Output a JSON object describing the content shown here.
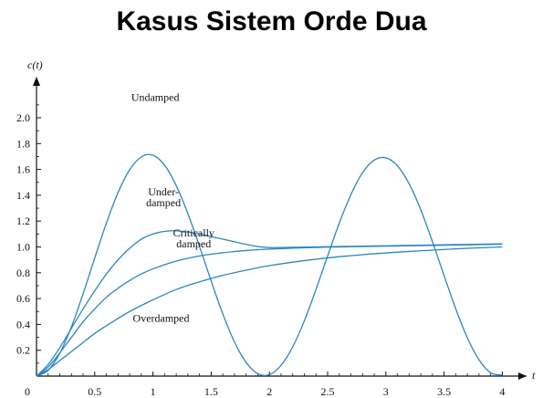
{
  "slide": {
    "title": "Kasus Sistem Orde Dua"
  },
  "chart_data": {
    "type": "line",
    "ylabel": "c(t)",
    "xlabel": "t",
    "xlim": [
      0,
      4.1
    ],
    "ylim": [
      0,
      2.1
    ],
    "x_ticks": [
      "0",
      "0.5",
      "1",
      "1.5",
      "2",
      "2.5",
      "3",
      "3.5",
      "4"
    ],
    "y_ticks": [
      "0.2",
      "0.4",
      "0.6",
      "0.8",
      "1.0",
      "1.2",
      "1.4",
      "1.6",
      "1.8",
      "2.0"
    ],
    "line_color": "#2a86c2",
    "series": [
      {
        "name": "Undamped",
        "x": [
          0,
          0.1,
          0.2,
          0.3,
          0.4,
          0.5,
          0.6,
          0.7,
          0.8,
          0.9,
          1.0,
          1.1,
          1.2,
          1.3,
          1.4,
          1.5,
          1.6,
          1.7,
          1.8,
          1.9,
          2.0,
          2.1,
          2.2,
          2.3,
          2.4,
          2.5,
          2.6,
          2.7,
          2.8,
          2.9,
          3.0,
          3.1,
          3.2,
          3.3,
          3.4,
          3.5,
          3.6,
          3.7,
          3.8,
          3.9,
          4.0
        ],
        "y": [
          0,
          0.045,
          0.177,
          0.382,
          0.637,
          0.914,
          1.184,
          1.42,
          1.597,
          1.697,
          1.71,
          1.632,
          1.475,
          1.258,
          1.004,
          0.736,
          0.481,
          0.264,
          0.106,
          0.019,
          0.011,
          0.083,
          0.226,
          0.428,
          0.671,
          0.93,
          1.184,
          1.405,
          1.575,
          1.672,
          1.69,
          1.628,
          1.489,
          1.287,
          1.041,
          0.778,
          0.521,
          0.296,
          0.126,
          0.026,
          0.007
        ]
      },
      {
        "name": "Under-damped",
        "x": [
          0,
          0.1,
          0.2,
          0.3,
          0.4,
          0.5,
          0.6,
          0.7,
          0.8,
          0.9,
          1.0,
          1.1,
          1.2,
          1.3,
          1.4,
          1.5,
          1.6,
          1.7,
          1.8,
          1.9,
          2.0,
          2.2,
          2.4,
          2.6,
          2.8,
          3.0,
          3.2,
          3.4,
          3.6,
          3.8,
          4.0
        ],
        "y": [
          0,
          0.09,
          0.22,
          0.37,
          0.52,
          0.66,
          0.79,
          0.9,
          0.99,
          1.06,
          1.1,
          1.12,
          1.125,
          1.115,
          1.1,
          1.08,
          1.06,
          1.04,
          1.02,
          1.003,
          0.995,
          0.997,
          1.0,
          1.003,
          1.006,
          1.009,
          1.012,
          1.015,
          1.018,
          1.021,
          1.024
        ]
      },
      {
        "name": "Critically damped",
        "x": [
          0,
          0.1,
          0.2,
          0.3,
          0.4,
          0.5,
          0.6,
          0.7,
          0.8,
          0.9,
          1.0,
          1.2,
          1.4,
          1.6,
          1.8,
          2.0,
          2.2,
          2.4,
          2.6,
          2.8,
          3.0,
          3.2,
          3.4,
          3.6,
          3.8,
          4.0
        ],
        "y": [
          0,
          0.07,
          0.18,
          0.3,
          0.42,
          0.52,
          0.61,
          0.68,
          0.74,
          0.79,
          0.83,
          0.89,
          0.93,
          0.955,
          0.972,
          0.983,
          0.99,
          0.996,
          1.0,
          1.003,
          1.006,
          1.009,
          1.012,
          1.015,
          1.018,
          1.021
        ]
      },
      {
        "name": "Overdamped",
        "x": [
          0,
          0.1,
          0.2,
          0.3,
          0.4,
          0.5,
          0.6,
          0.8,
          1.0,
          1.2,
          1.4,
          1.6,
          1.8,
          2.0,
          2.4,
          2.8,
          3.2,
          3.6,
          4.0
        ],
        "y": [
          0,
          0.05,
          0.12,
          0.19,
          0.26,
          0.33,
          0.39,
          0.5,
          0.59,
          0.67,
          0.73,
          0.78,
          0.82,
          0.855,
          0.905,
          0.94,
          0.965,
          0.985,
          1.0
        ]
      }
    ],
    "annotations": [
      {
        "lines": [
          "Undamped"
        ],
        "x": 1.02,
        "y": 2.13
      },
      {
        "lines": [
          "Under-",
          "damped"
        ],
        "x": 1.09,
        "y": 1.4
      },
      {
        "lines": [
          "Critically",
          "damped"
        ],
        "x": 1.35,
        "y": 1.08
      },
      {
        "lines": [
          "Overdamped"
        ],
        "x": 1.07,
        "y": 0.42
      }
    ]
  }
}
